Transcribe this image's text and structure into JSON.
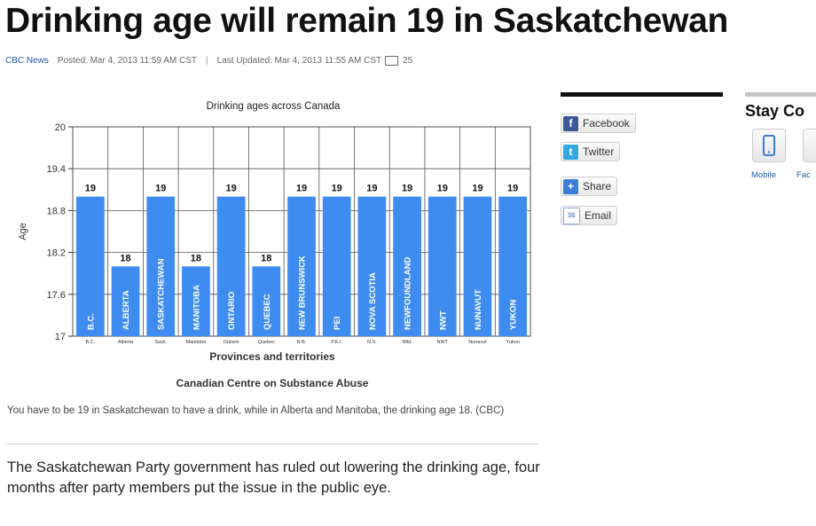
{
  "article": {
    "headline": "Drinking age will remain 19 in Saskatchewan",
    "source": "CBC News",
    "posted": "Posted: Mar 4, 2013 11:59 AM CST",
    "separator": "|",
    "updated": "Last Updated: Mar 4, 2013 11:55 AM CST",
    "comments": "25",
    "caption": "You have to be 19 in Saskatchewan to have a drink, while in Alberta and Manitoba, the drinking age 18. (CBC)",
    "body": "The Saskatchewan Party government has ruled out lowering the drinking age, four months after party members put the issue in the public eye."
  },
  "share": {
    "facebook": "Facebook",
    "twitter": "Twitter",
    "share": "Share",
    "email": "Email"
  },
  "stay": {
    "title": "Stay Co",
    "mobile": "Mobile",
    "facebook": "Fac"
  },
  "colors": {
    "bar": "#3f8cf0",
    "link": "#1f5aa6"
  },
  "chart_data": {
    "type": "bar",
    "title": "Drinking ages across Canada",
    "xlabel": "Provinces and territories",
    "ylabel": "Age",
    "source": "Canadian Centre on Substance Abuse",
    "ylim": [
      17,
      20
    ],
    "yticks": [
      "17",
      "17.6",
      "18.2",
      "18.8",
      "19.4",
      "20"
    ],
    "grid": true,
    "categories": [
      "B.C.",
      "ALBERTA",
      "SASKATCHEWAN",
      "MANITOBA",
      "ONTARIO",
      "QUEBEC",
      "NEW BRUNSWICK",
      "PEI",
      "NOVA SCOTIA",
      "NEWFOUNDLAND",
      "NWT",
      "NUNAVUT",
      "YUKON"
    ],
    "short_labels": [
      "B.C.",
      "Alberta",
      "Sask.",
      "Manitoba",
      "Ontario",
      "Quebec",
      "N.B.",
      "P.E.I.",
      "N.S.",
      "Nfld.",
      "NWT",
      "Nunavut",
      "Yukon"
    ],
    "values": [
      19,
      18,
      19,
      18,
      19,
      18,
      19,
      19,
      19,
      19,
      19,
      19,
      19
    ]
  }
}
